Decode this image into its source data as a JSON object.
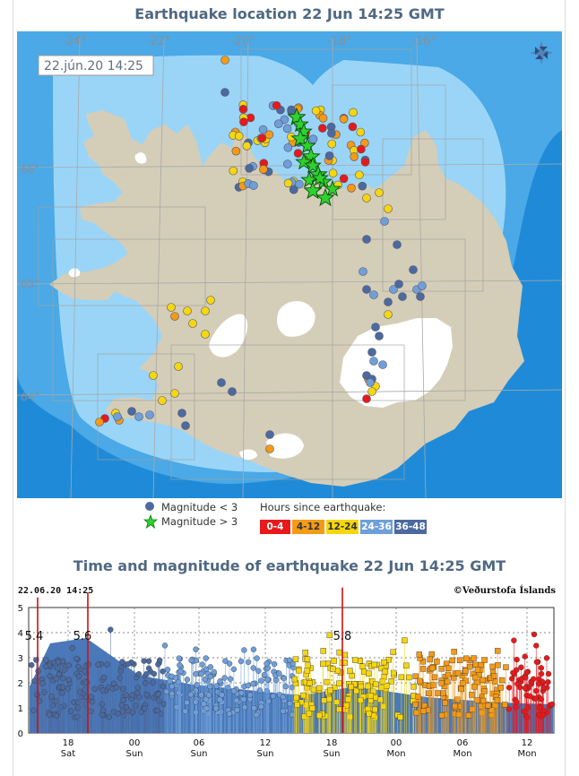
{
  "map": {
    "title": "Earthquake location   22 Jun 14:25 GMT",
    "timestamp_label": "22.jún.20 14:25",
    "lon_labels": [
      "-24°",
      "-22°",
      "-20°",
      "-18°",
      "-16°"
    ],
    "lat_labels": [
      "66°",
      "65°",
      "64°"
    ],
    "compass_icon": "compass-rose-icon",
    "colors": {
      "sea_deep": "#1f8bd8",
      "sea_mid": "#4aa9e6",
      "sea_light": "#9ad5f7",
      "land": "#d4cdb8",
      "glacier": "#ffffff"
    }
  },
  "legend": {
    "small": "Magnitude < 3",
    "large": "Magnitude > 3",
    "hours_title": "Hours since earthquake:",
    "bins": [
      {
        "label": "0-4",
        "color": "#e8191b"
      },
      {
        "label": "4-12",
        "color": "#f49a17"
      },
      {
        "label": "12-24",
        "color": "#f5d60f"
      },
      {
        "label": "24-36",
        "color": "#6f9fda"
      },
      {
        "label": "36-48",
        "color": "#4c6aa0"
      }
    ]
  },
  "plot": {
    "title": "Time and magnitude of earthquake   22 Jun 14:25 GMT",
    "timestamp": "22.06.20 14:25",
    "credit": "©Veðurstofa Íslands",
    "y_ticks": [
      "0",
      "1",
      "2",
      "3",
      "4",
      "5"
    ],
    "x_ticks": [
      {
        "hour": "18",
        "day": "Sat"
      },
      {
        "hour": "00",
        "day": "Sun"
      },
      {
        "hour": "06",
        "day": "Sun"
      },
      {
        "hour": "12",
        "day": "Sun"
      },
      {
        "hour": "18",
        "day": "Sun"
      },
      {
        "hour": "00",
        "day": "Mon"
      },
      {
        "hour": "06",
        "day": "Mon"
      },
      {
        "hour": "12",
        "day": "Mon"
      }
    ],
    "annotations": [
      "5.4",
      "5.6",
      "5.8"
    ]
  }
}
